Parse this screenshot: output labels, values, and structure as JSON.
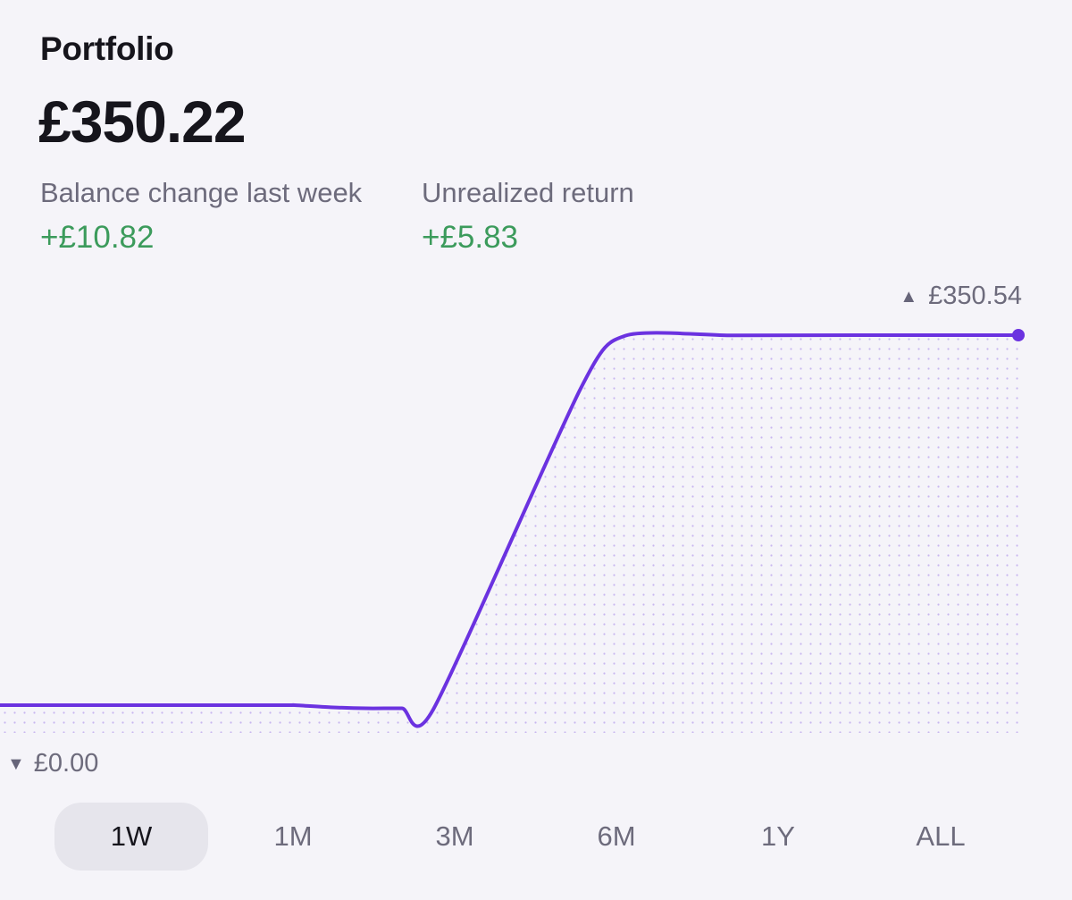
{
  "portfolio": {
    "title": "Portfolio",
    "balance": "£350.22",
    "stats": [
      {
        "label": "Balance change last week",
        "value": "+£10.82"
      },
      {
        "label": "Unrealized return",
        "value": "+£5.83"
      }
    ]
  },
  "chart": {
    "high_label": "£350.54",
    "low_label": "£0.00"
  },
  "chart_data": {
    "type": "area",
    "series": [
      {
        "values": [
          0,
          0,
          0,
          0,
          0,
          -2,
          -3,
          -3,
          -4,
          300,
          350,
          350.3,
          350.5,
          350.54
        ]
      }
    ],
    "ylim": [
      0,
      350.54
    ],
    "line_color": "#6b32e0",
    "fill": "dotted"
  },
  "time_ranges": {
    "options": [
      "1W",
      "1M",
      "3M",
      "6M",
      "1Y",
      "ALL"
    ],
    "selected": "1W"
  },
  "colors": {
    "positive": "#3c9b5c",
    "accent": "#6b32e0",
    "muted": "#6d6b7c"
  }
}
